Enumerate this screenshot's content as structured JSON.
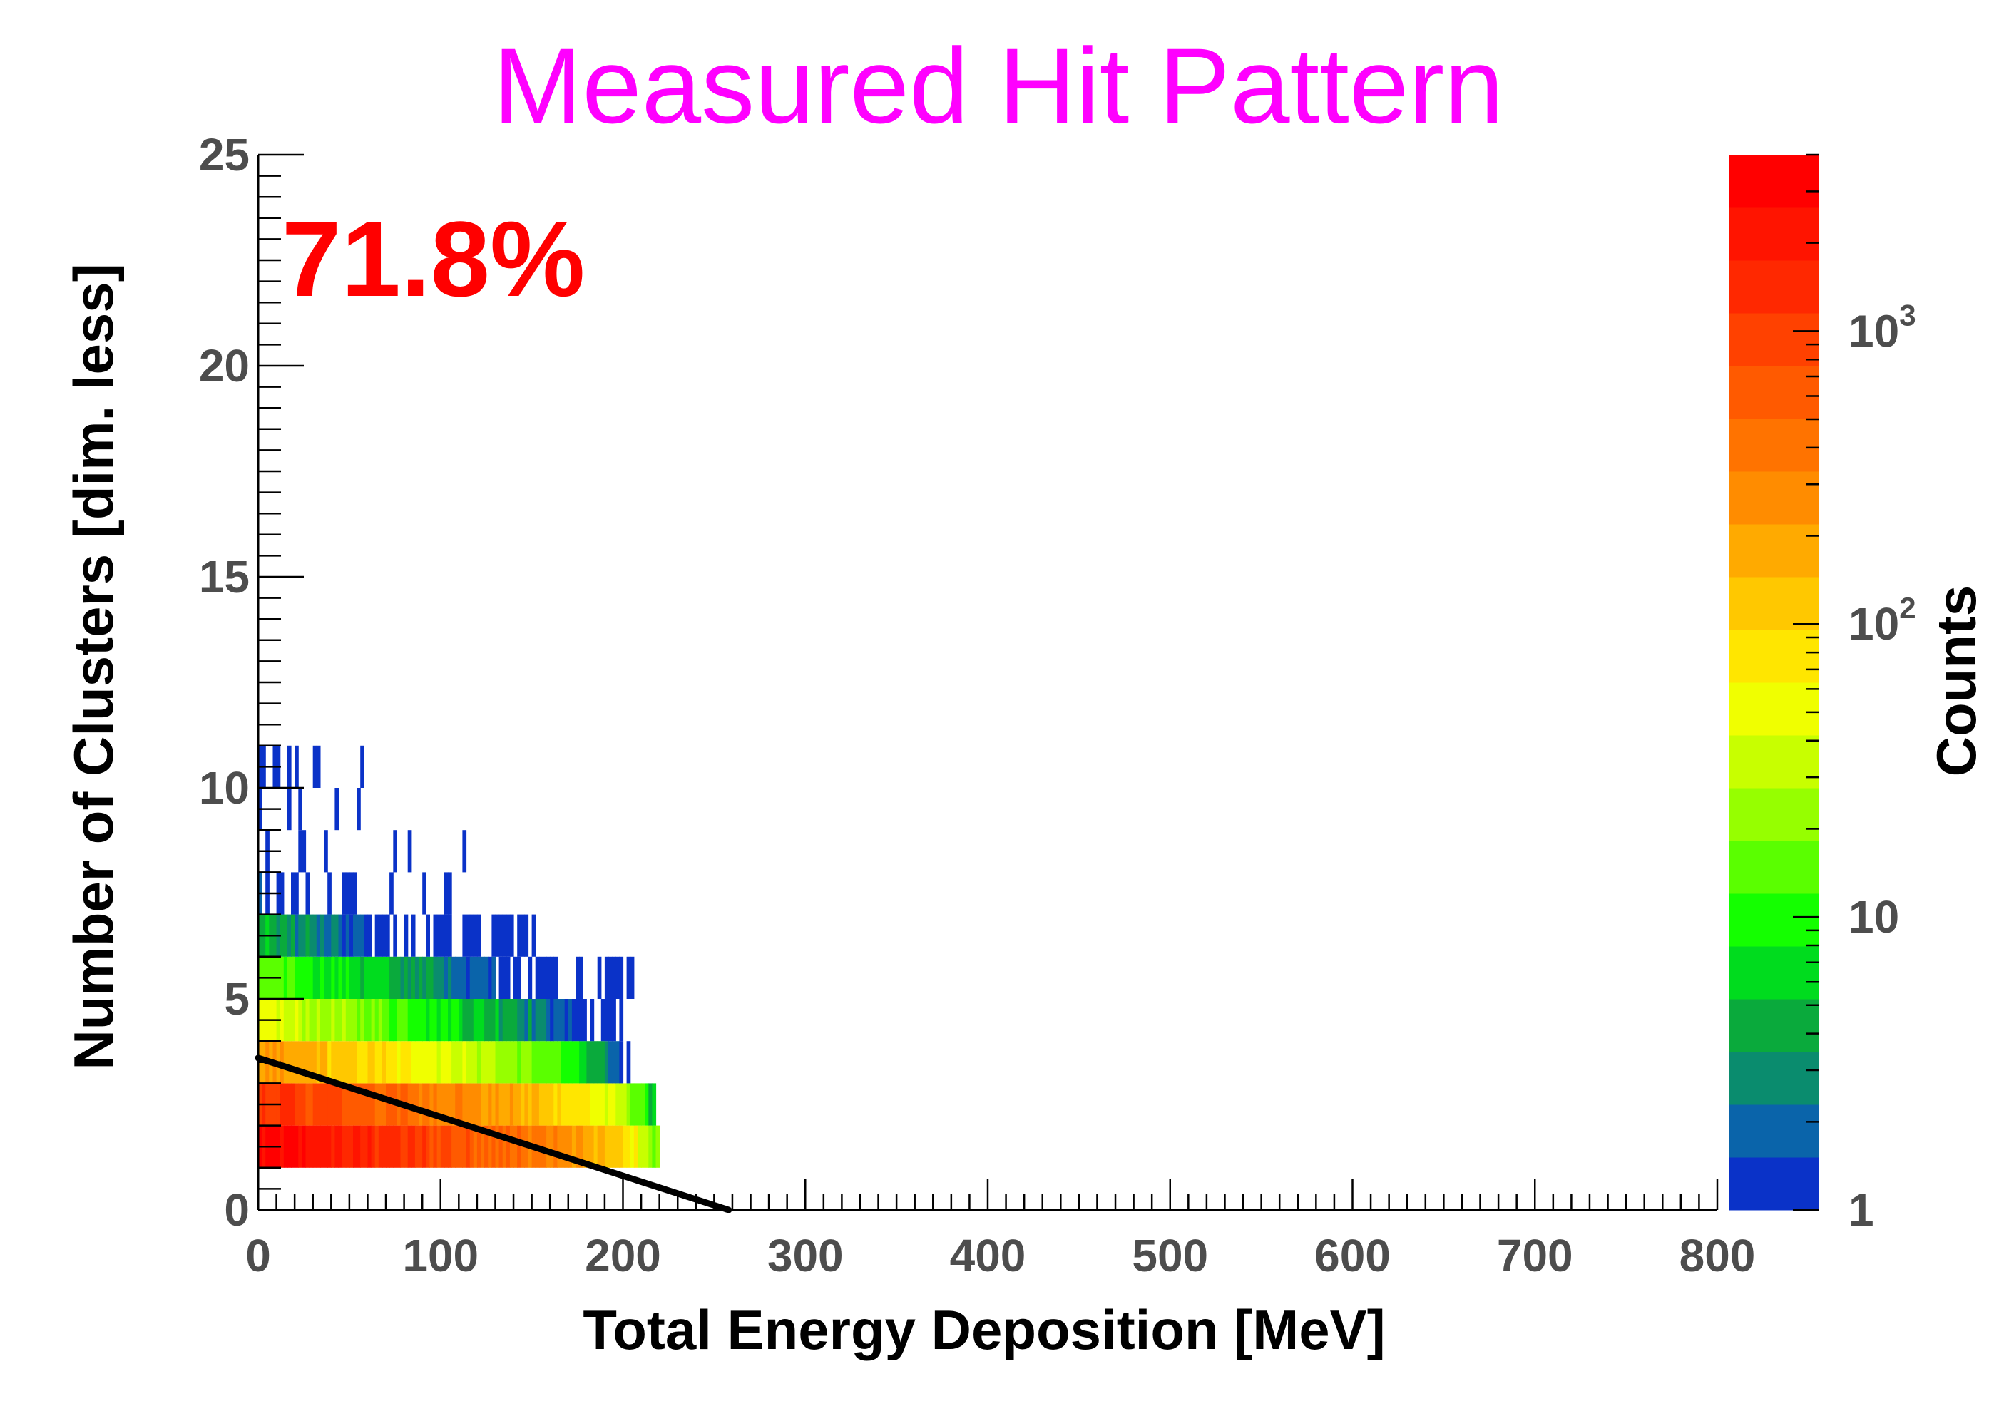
{
  "chart_data": {
    "type": "heatmap",
    "title": "Measured Hit Pattern",
    "xlabel": "Total Energy Deposition [MeV]",
    "ylabel": "Number of Clusters [dim. less]",
    "zlabel": "Counts",
    "annotation": "71.8%",
    "xlim": [
      0,
      800
    ],
    "ylim": [
      0,
      25
    ],
    "zlim": [
      1,
      4000
    ],
    "zscale": "log",
    "x_ticks": [
      "0",
      "100",
      "200",
      "300",
      "400",
      "500",
      "600",
      "700",
      "800"
    ],
    "y_ticks": [
      "0",
      "5",
      "10",
      "15",
      "20",
      "25"
    ],
    "z_ticks": [
      {
        "value": 1,
        "base": "1",
        "exp": ""
      },
      {
        "value": 10,
        "base": "10",
        "exp": ""
      },
      {
        "value": 100,
        "base": "10",
        "exp": "2"
      },
      {
        "value": 1000,
        "base": "10",
        "exp": "3"
      }
    ],
    "colormap": [
      "#0a32c8",
      "#0a64aa",
      "#0a8c6e",
      "#0aaa3c",
      "#00dc1e",
      "#14ff00",
      "#5aff00",
      "#96ff00",
      "#c8ff00",
      "#f0ff00",
      "#ffe600",
      "#ffc800",
      "#ffaa00",
      "#ff8c00",
      "#ff7300",
      "#ff5a00",
      "#ff4100",
      "#ff2800",
      "#ff1400",
      "#ff0000"
    ],
    "rows": [
      {
        "clusters_min": 1,
        "clusters_max": 2,
        "x_max": 220,
        "peak_count": 3000,
        "slope": 0.6
      },
      {
        "clusters_min": 2,
        "clusters_max": 3,
        "x_max": 217,
        "peak_count": 1200,
        "slope": 0.62
      },
      {
        "clusters_min": 3,
        "clusters_max": 4,
        "x_max": 203,
        "peak_count": 220,
        "slope": 0.75
      },
      {
        "clusters_min": 4,
        "clusters_max": 5,
        "x_max": 200,
        "peak_count": 45,
        "slope": 0.85
      },
      {
        "clusters_min": 5,
        "clusters_max": 6,
        "x_max": 205,
        "peak_count": 15,
        "slope": 1.0
      },
      {
        "clusters_min": 6,
        "clusters_max": 7,
        "x_max": 158,
        "peak_count": 5,
        "slope": 1.2
      },
      {
        "clusters_min": 7,
        "clusters_max": 8,
        "x_max": 130,
        "peak_count": 2,
        "slope": 1.5
      },
      {
        "clusters_min": 8,
        "clusters_max": 9,
        "x_max": 115,
        "peak_count": 1,
        "slope": 1.5
      },
      {
        "clusters_min": 9,
        "clusters_max": 10,
        "x_max": 66,
        "peak_count": 1,
        "slope": 1.5
      },
      {
        "clusters_min": 10,
        "clusters_max": 11,
        "x_max": 62,
        "peak_count": 1,
        "slope": 1.5
      }
    ],
    "cut_line": {
      "x": [
        0,
        258
      ],
      "y": [
        3.6,
        0
      ],
      "color": "#000000"
    }
  }
}
